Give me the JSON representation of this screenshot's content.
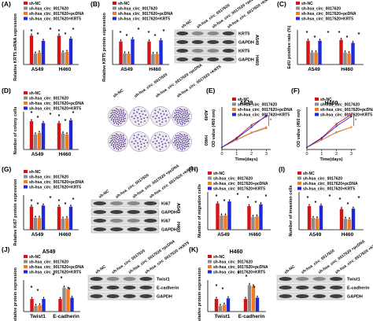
{
  "figure": {
    "colors": {
      "c0": "#d21414",
      "c1": "#8c8c8c",
      "c2": "#f47a20",
      "c3": "#1f2ad6"
    },
    "legend4": [
      "sh-NC",
      "sh-hsa_circ_0017620",
      "sh-hsa_circ_0017620+pcDNA",
      "sh-hsa_circ_0017620+KRT5"
    ],
    "legend2": [
      "sh-NC",
      "sh-hsa_circ_0017620"
    ],
    "lane_labels4": [
      "sh-NC",
      "sh-hsa_circ_0017620",
      "sh-hsa_circ_0017620 +pcDNA",
      "sh-hsa_circ_0017620 +KRT5"
    ],
    "lane_labels2": [
      "sh-NC",
      "sh-hsa_circ_0017620"
    ],
    "cell_lines": [
      "A549",
      "H460"
    ],
    "panels": {
      "A": {
        "letter": "(A)",
        "ylabel": "Relative KRT5 mRNA expression"
      },
      "B": {
        "letter": "(B)",
        "ylabel": "Relative KRT5 protein expression",
        "blot_labels": [
          "KRT5",
          "GAPDH",
          "KRT5",
          "GAPDH"
        ]
      },
      "C": {
        "letter": "(C)",
        "ylabel": "EdU positive rate (%)"
      },
      "D": {
        "letter": "(D)",
        "ylabel": "Number of colony cells"
      },
      "E": {
        "letter": "(E)",
        "title": "A549",
        "xlabel": "Time(days)",
        "ylabel": "OD value (450 nm)"
      },
      "F": {
        "letter": "(F)",
        "title": "H460",
        "xlabel": "Time(days)",
        "ylabel": "OD value (450 nm)"
      },
      "G": {
        "letter": "(G)",
        "ylabel": "Relative Ki67 protein expression",
        "blot_labels": [
          "Ki67",
          "GAPDH",
          "Ki67",
          "GAPDH"
        ]
      },
      "H": {
        "letter": "(H)",
        "ylabel": "Number of migration cells"
      },
      "I": {
        "letter": "(I)",
        "ylabel": "Number of invasion cells"
      },
      "J": {
        "letter": "(J)",
        "title": "A549",
        "ylabel": "Relative protein expression",
        "categories": [
          "Twist1",
          "E-cadherin"
        ],
        "blot_labels": [
          "Twist1",
          "E-cadherin",
          "GAPDH"
        ]
      },
      "K": {
        "letter": "(K)",
        "title": "H460",
        "ylabel": "Relative protein expression",
        "categories": [
          "Twist1",
          "E-cadherin"
        ],
        "blot_labels": [
          "Twist1",
          "E-cadherin",
          "GAPDH"
        ]
      }
    }
  },
  "chart_data": [
    {
      "panel": "A",
      "type": "bar",
      "categories": [
        "A549",
        "H460"
      ],
      "series": [
        {
          "values": [
            1.0,
            1.0
          ]
        },
        {
          "values": [
            0.38,
            0.42
          ]
        },
        {
          "values": [
            0.42,
            0.44
          ]
        },
        {
          "values": [
            0.82,
            0.9
          ]
        }
      ],
      "ylim": [
        0,
        1.2
      ],
      "yticks": []
    },
    {
      "panel": "B",
      "type": "bar",
      "categories": [
        "A549",
        "H460"
      ],
      "series": [
        {
          "values": [
            1.0,
            1.0
          ]
        },
        {
          "values": [
            0.48,
            0.45
          ]
        },
        {
          "values": [
            0.47,
            0.46
          ]
        },
        {
          "values": [
            1.1,
            1.05
          ]
        }
      ],
      "ylim": [
        0,
        1.5
      ],
      "yticks": []
    },
    {
      "panel": "C",
      "type": "bar",
      "categories": [
        "A549",
        "H460"
      ],
      "series": [
        {
          "values": [
            55,
            57
          ]
        },
        {
          "values": [
            28,
            28
          ]
        },
        {
          "values": [
            28,
            26
          ]
        },
        {
          "values": [
            55,
            50
          ]
        }
      ],
      "ylim": [
        0,
        80
      ],
      "yticks": []
    },
    {
      "panel": "D",
      "type": "bar",
      "categories": [
        "A549",
        "H460"
      ],
      "series": [
        {
          "values": [
            150,
            140
          ]
        },
        {
          "values": [
            80,
            85
          ]
        },
        {
          "values": [
            88,
            80
          ]
        },
        {
          "values": [
            140,
            155
          ]
        }
      ],
      "ylim": [
        0,
        200
      ],
      "yticks": []
    },
    {
      "panel": "E",
      "type": "line",
      "x": [
        0,
        1,
        2,
        3
      ],
      "xlim": [
        0,
        3.3
      ],
      "ylim": [
        0,
        2.0
      ],
      "xticks": [
        0,
        1,
        2,
        3
      ],
      "yticks": [],
      "series": [
        {
          "values": [
            0.1,
            0.55,
            1.15,
            1.55
          ]
        },
        {
          "values": [
            0.1,
            0.45,
            0.78,
            1.0
          ]
        },
        {
          "values": [
            0.1,
            0.46,
            0.8,
            1.05
          ]
        },
        {
          "values": [
            0.1,
            0.52,
            1.05,
            1.6
          ]
        }
      ]
    },
    {
      "panel": "F",
      "type": "line",
      "x": [
        0,
        1,
        2,
        3
      ],
      "xlim": [
        0,
        3.3
      ],
      "ylim": [
        0,
        2.0
      ],
      "xticks": [
        0,
        1,
        2,
        3
      ],
      "yticks": [],
      "series": [
        {
          "values": [
            0.1,
            0.55,
            1.2,
            1.65
          ]
        },
        {
          "values": [
            0.1,
            0.45,
            0.8,
            1.05
          ]
        },
        {
          "values": [
            0.1,
            0.45,
            0.82,
            1.05
          ]
        },
        {
          "values": [
            0.1,
            0.52,
            1.1,
            1.55
          ]
        }
      ]
    },
    {
      "panel": "G",
      "type": "bar",
      "categories": [
        "A549",
        "H460"
      ],
      "series": [
        {
          "values": [
            1.0,
            1.0
          ]
        },
        {
          "values": [
            0.52,
            0.48
          ]
        },
        {
          "values": [
            0.52,
            0.5
          ]
        },
        {
          "values": [
            1.05,
            1.0
          ]
        }
      ],
      "ylim": [
        0,
        1.5
      ],
      "yticks": []
    },
    {
      "panel": "H",
      "type": "bar",
      "categories": [
        "A549",
        "H460"
      ],
      "series": [
        {
          "values": [
            140,
            125
          ]
        },
        {
          "values": [
            75,
            68
          ]
        },
        {
          "values": [
            75,
            70
          ]
        },
        {
          "values": [
            150,
            135
          ]
        }
      ],
      "ylim": [
        0,
        200
      ],
      "yticks": []
    },
    {
      "panel": "I",
      "type": "bar",
      "categories": [
        "A549",
        "H460"
      ],
      "series": [
        {
          "values": [
            125,
            110
          ]
        },
        {
          "values": [
            62,
            58
          ]
        },
        {
          "values": [
            60,
            55
          ]
        },
        {
          "values": [
            128,
            112
          ]
        }
      ],
      "ylim": [
        0,
        200
      ],
      "yticks": []
    },
    {
      "panel": "J",
      "type": "bar",
      "categories": [
        "Twist1",
        "E-cadherin"
      ],
      "series": [
        {
          "values": [
            1.0,
            1.0
          ]
        },
        {
          "values": [
            0.45,
            1.9
          ]
        },
        {
          "values": [
            0.5,
            1.8
          ]
        },
        {
          "values": [
            1.0,
            1.1
          ]
        }
      ],
      "ylim": [
        0,
        2.5
      ],
      "yticks": []
    },
    {
      "panel": "K",
      "type": "bar",
      "categories": [
        "Twist1",
        "E-cadherin"
      ],
      "series": [
        {
          "values": [
            1.0,
            1.0
          ]
        },
        {
          "values": [
            0.45,
            2.1
          ]
        },
        {
          "values": [
            0.55,
            2.0
          ]
        },
        {
          "values": [
            1.05,
            1.1
          ]
        }
      ],
      "ylim": [
        0,
        2.5
      ],
      "yticks": []
    }
  ]
}
